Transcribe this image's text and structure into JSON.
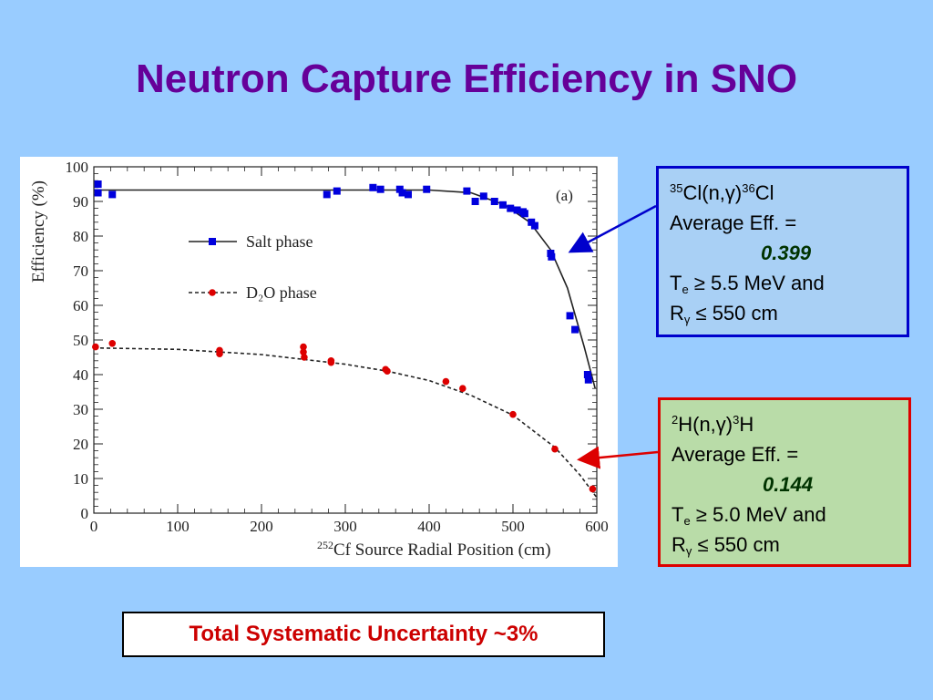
{
  "title": "Neutron Capture Efficiency in SNO",
  "colors": {
    "background": "#99ccff",
    "title": "#660099",
    "salt": "#0000dd",
    "d2o": "#dd0000"
  },
  "box_cl": {
    "sup1": "35",
    "reaction_main": "Cl(n,γ)",
    "sup2": "36",
    "reaction_end": "Cl",
    "avg_label": "Average Eff. =",
    "avg_value": "0.399",
    "te_text": "T",
    "te_sub": "e",
    "te_cond": " ≥ 5.5 MeV and",
    "r_text": "R",
    "r_sub": "γ",
    "r_cond": " ≤ 550 cm"
  },
  "box_h": {
    "sup1": "2",
    "reaction_main": "H(n,γ)",
    "sup2": "3",
    "reaction_end": "H",
    "avg_label": "Average Eff. =",
    "avg_value": "0.144",
    "te_text": "T",
    "te_sub": "e",
    "te_cond": " ≥ 5.0 MeV and",
    "r_text": "R",
    "r_sub": "γ",
    "r_cond": " ≤ 550 cm"
  },
  "uncertainty": "Total Systematic Uncertainty ~3%",
  "chart_data": {
    "type": "scatter",
    "panel_label": "(a)",
    "xlabel_sup": "252",
    "xlabel": "Cf Source Radial Position (cm)",
    "ylabel": "Efficiency (%)",
    "xlim": [
      0,
      600
    ],
    "ylim": [
      0,
      100
    ],
    "xticks": [
      0,
      100,
      200,
      300,
      400,
      500,
      600
    ],
    "yticks": [
      0,
      10,
      20,
      30,
      40,
      50,
      60,
      70,
      80,
      90,
      100
    ],
    "grid": false,
    "legend_position": "upper-left",
    "series": [
      {
        "name": "Salt phase",
        "marker": "square",
        "color": "#0000dd",
        "points": [
          [
            5,
            95
          ],
          [
            5,
            92.5
          ],
          [
            22,
            92
          ],
          [
            278,
            92
          ],
          [
            290,
            93
          ],
          [
            333,
            94
          ],
          [
            342,
            93.5
          ],
          [
            365,
            93.5
          ],
          [
            368,
            92.5
          ],
          [
            375,
            92
          ],
          [
            397,
            93.5
          ],
          [
            445,
            93
          ],
          [
            455,
            90
          ],
          [
            465,
            91.5
          ],
          [
            478,
            90
          ],
          [
            488,
            89
          ],
          [
            497,
            88
          ],
          [
            505,
            87.5
          ],
          [
            512,
            87
          ],
          [
            514,
            86.5
          ],
          [
            522,
            84
          ],
          [
            526,
            83
          ],
          [
            545,
            75
          ],
          [
            546,
            74
          ],
          [
            568,
            57
          ],
          [
            574,
            53
          ],
          [
            589,
            40
          ],
          [
            590,
            38.5
          ]
        ],
        "fit": [
          [
            0,
            93.3
          ],
          [
            400,
            93.3
          ],
          [
            450,
            92.5
          ],
          [
            490,
            89
          ],
          [
            520,
            84
          ],
          [
            545,
            76
          ],
          [
            565,
            65
          ],
          [
            585,
            48
          ],
          [
            598,
            36
          ]
        ]
      },
      {
        "name": "D₂O phase",
        "marker": "circle",
        "color": "#dd0000",
        "points": [
          [
            2,
            48
          ],
          [
            22,
            49
          ],
          [
            150,
            47
          ],
          [
            150,
            46
          ],
          [
            250,
            48
          ],
          [
            250,
            46.5
          ],
          [
            251,
            45
          ],
          [
            283,
            44
          ],
          [
            283,
            43.5
          ],
          [
            348,
            41.5
          ],
          [
            350,
            41
          ],
          [
            420,
            38
          ],
          [
            440,
            36
          ],
          [
            500,
            28.5
          ],
          [
            550,
            18.5
          ],
          [
            595,
            7
          ]
        ],
        "fit": [
          [
            0,
            47.7
          ],
          [
            100,
            47.3
          ],
          [
            200,
            45.8
          ],
          [
            300,
            43
          ],
          [
            350,
            41
          ],
          [
            400,
            38.3
          ],
          [
            450,
            34
          ],
          [
            500,
            28.3
          ],
          [
            550,
            19
          ],
          [
            580,
            11
          ],
          [
            600,
            4.5
          ]
        ]
      }
    ]
  }
}
